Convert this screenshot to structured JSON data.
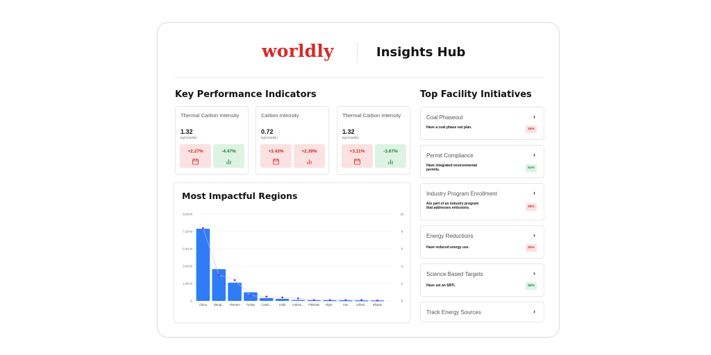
{
  "header": {
    "logo_text": "worldly",
    "title": "Insights Hub"
  },
  "kpi": {
    "section_title": "Key Performance Indicators",
    "cards": [
      {
        "name": "Thermal Carbon Intensity",
        "value": "1.32",
        "unit": "kgCO2e/MJ",
        "change_a": "+2.27%",
        "change_b": "-4.47%"
      },
      {
        "name": "Carbon Intensity",
        "value": "0.72",
        "unit": "kgCO2e/MJ",
        "change_a": "+3.43%",
        "change_b": "+2.39%"
      },
      {
        "name": "Thermal Carbon Intensity",
        "value": "1.32",
        "unit": "kgCO2e/MJ",
        "change_a": "+3.11%",
        "change_b": "-3.67%"
      }
    ],
    "colors": {
      "negative_bg": "#fbe1e1",
      "positive_bg": "#ddf3e3"
    }
  },
  "regions": {
    "title": "Most Impactful Regions"
  },
  "chart_data": {
    "type": "bar",
    "categories": [
      "China",
      "Bangl...",
      "Vietnam",
      "Turkey",
      "Camb...",
      "India",
      "Indone...",
      "Pakistan",
      "Alger...",
      "Iran",
      "Uzbek...",
      "Bhutan"
    ],
    "series": [
      {
        "values": [
          7.5,
          3.3,
          1.9,
          0.9,
          0.3,
          0.22,
          0.1,
          0.08,
          0.07,
          0.06,
          0.05,
          0.05
        ],
        "color": "#2f7df6"
      },
      {
        "values": [
          8.4,
          3.0,
          2.4,
          0.6,
          0.5,
          0.4,
          0.3,
          0.1,
          0.1,
          0.1,
          0.1,
          0.05
        ],
        "color": "#9b1fc9",
        "axis": "right"
      }
    ],
    "y_ticks_left": [
      "0",
      "1.80 M",
      "3.60 M",
      "5.40 M",
      "7.20 M",
      "9.00 M"
    ],
    "y_ticks_right": [
      "0",
      "2",
      "4",
      "6",
      "8",
      "10"
    ],
    "ylim_left": [
      0,
      9
    ],
    "ylim_right": [
      0,
      10
    ],
    "grid": true
  },
  "initiatives": {
    "section_title": "Top Facility Initiatives",
    "items": [
      {
        "name": "Coal Phaseout",
        "desc": "Have a coal phase out plan.",
        "pct": "15%",
        "status": "red"
      },
      {
        "name": "Permit Compliance",
        "desc": "Have integrated environmental permits.",
        "pct": "51%",
        "status": "green"
      },
      {
        "name": "Industry Program Enrollment",
        "desc": "Are part of an industry program that addresses emissions.",
        "pct": "25%",
        "status": "red"
      },
      {
        "name": "Energy Reductions",
        "desc": "Have reduced energy use.",
        "pct": "20%",
        "status": "red"
      },
      {
        "name": "Science Based Targets",
        "desc": "Have set an SBTi.",
        "pct": "60%",
        "status": "green"
      },
      {
        "name": "Track Energy Sources",
        "desc": "",
        "pct": "",
        "status": ""
      }
    ],
    "chevron": "›"
  }
}
